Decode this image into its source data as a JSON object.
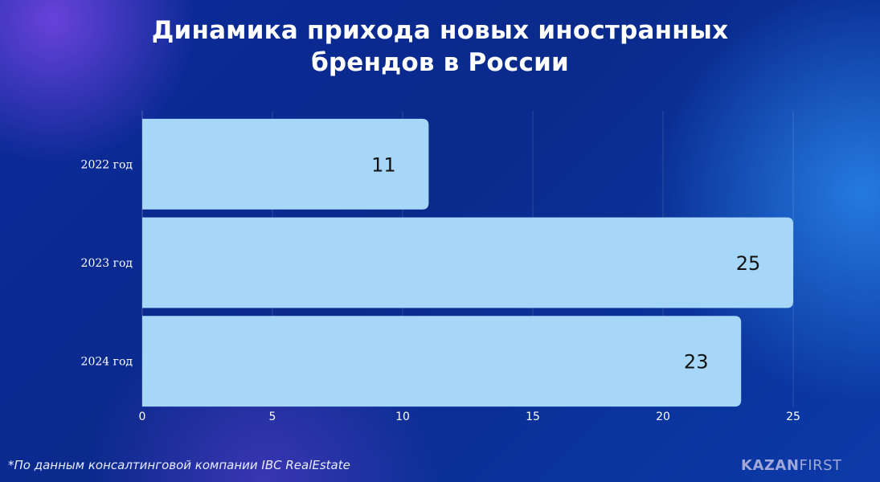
{
  "title": {
    "line1": "Динамика прихода новых иностранных",
    "line2": "брендов в России"
  },
  "chart_data": {
    "type": "bar",
    "orientation": "horizontal",
    "categories": [
      "2022 год",
      "2023 год",
      "2024 год"
    ],
    "values": [
      11,
      25,
      23
    ],
    "xlim": [
      0,
      25
    ],
    "xticks": [
      "0",
      "5",
      "10",
      "15",
      "20",
      "25"
    ],
    "grid": "vertical",
    "bar_color": "#a6d6f8",
    "label_color": "#111111"
  },
  "footnote": "*По данным консалтинговой компании IBC RealEstate",
  "brand": {
    "part1": "KAZAN",
    "part2": "FIRST"
  }
}
